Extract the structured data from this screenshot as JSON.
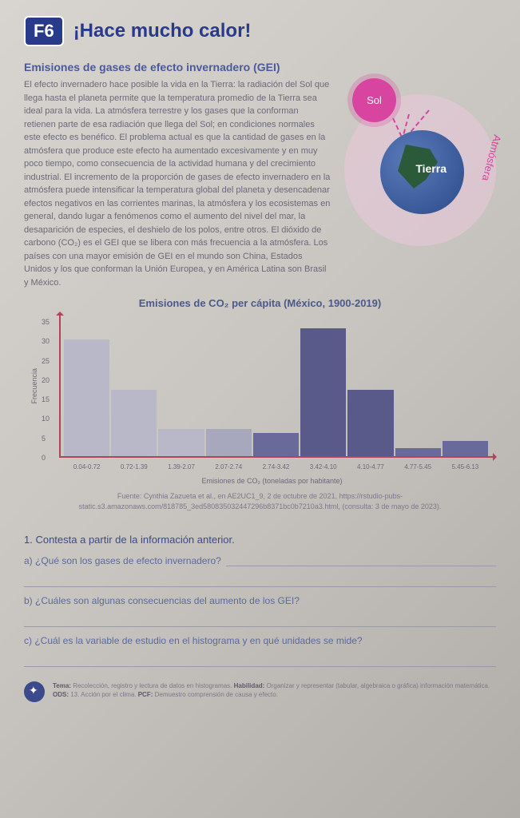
{
  "header": {
    "badge": "F6",
    "title": "¡Hace mucho calor!"
  },
  "section_title": "Emisiones de gases de efecto invernadero (GEI)",
  "body": "El efecto invernadero hace posible la vida en la Tierra: la radiación del Sol que llega hasta el planeta permite que la temperatura promedio de la Tierra sea ideal para la vida. La atmósfera terrestre y los gases que la conforman retienen parte de esa radiación que llega del Sol; en condiciones normales este efecto es benéfico. El problema actual es que la cantidad de gases en la atmósfera que produce este efecto ha aumentado excesivamente y en muy poco tiempo, como consecuencia de la actividad humana y del crecimiento industrial. El incremento de la proporción de gases de efecto invernadero en la atmósfera puede intensificar la temperatura global del planeta y desencadenar efectos negativos en las corrientes marinas, la atmósfera y los ecosistemas en general, dando lugar a fenómenos como el aumento del nivel del mar, la desaparición de especies, el deshielo de los polos, entre otros. El dióxido de carbono (CO₂) es el GEI que se libera con más frecuencia a la atmósfera. Los países con una mayor emisión de GEI en el mundo son China, Estados Unidos y los que conforman la Unión Europea, y en América Latina son Brasil y México.",
  "diagram": {
    "sun": "Sol",
    "earth": "Tierra",
    "atmos": "Atmósfera"
  },
  "chart": {
    "title": "Emisiones de CO₂ per cápita (México, 1900-2019)",
    "y_label": "Frecuencia",
    "y_ticks": [
      "0",
      "5",
      "10",
      "15",
      "20",
      "25",
      "30",
      "35"
    ],
    "y_max": 35,
    "x_title": "Emisiones de CO₂ (toneladas por habitante)",
    "categories": [
      "0.04-0.72",
      "0.72-1.39",
      "1.39-2.07",
      "2.07-2.74",
      "2.74-3.42",
      "3.42-4.10",
      "4.10-4.77",
      "4.77-5.45",
      "5.45-6.13"
    ],
    "values": [
      30,
      17,
      7,
      7,
      6,
      33,
      17,
      2,
      4
    ],
    "colors": [
      "#b8b8c8",
      "#b8b8c8",
      "#b8b8c8",
      "#a8a8bc",
      "#6a6a9a",
      "#5a5a8a",
      "#5a5a8a",
      "#6a6a9a",
      "#6a6a9a"
    ]
  },
  "fuente": "Fuente: Cynthia Zazueta et al., en AE2UC1_9, 2 de octubre de 2021, https://rstudio-pubs-static.s3.amazonaws.com/818785_3ed580835032447296b8371bc0b7210a3.html, (consulta: 3 de mayo de 2023).",
  "questions": {
    "head": "1. Contesta a partir de la información anterior.",
    "a": "a) ¿Qué son los gases de efecto invernadero?",
    "b": "b) ¿Cuáles son algunas consecuencias del aumento de los GEI?",
    "c": "c) ¿Cuál es la variable de estudio en el histograma y en qué unidades se mide?"
  },
  "footer": {
    "tema_label": "Tema:",
    "tema": " Recolección, registro y lectura de datos en histogramas. ",
    "hab_label": "Habilidad:",
    "hab": " Organizar y representar (tabular, algebraica o gráfica) información matemática. ",
    "ods_label": "ODS:",
    "ods": " 13. Acción por el clima. ",
    "pcf_label": "PCF:",
    "pcf": " Demuestro comprensión de causa y efecto."
  }
}
